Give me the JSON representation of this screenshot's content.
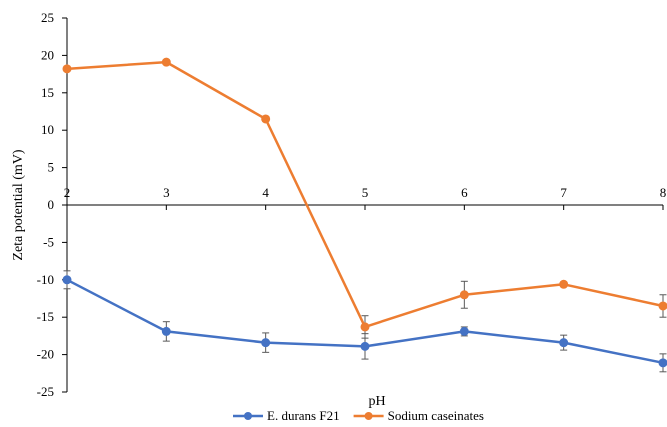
{
  "chart_data": {
    "type": "line",
    "xlabel": "pH",
    "ylabel": "Zeta potential (mV)",
    "x": [
      2,
      3,
      4,
      5,
      6,
      7,
      8
    ],
    "xlim": [
      2,
      8
    ],
    "ylim": [
      -25,
      25
    ],
    "yticks": [
      25,
      20,
      15,
      10,
      5,
      0,
      -5,
      -10,
      -15,
      -20,
      -25
    ],
    "xticks": [
      2,
      3,
      4,
      5,
      6,
      7,
      8
    ],
    "grid": false,
    "legend_position": "bottom",
    "series": [
      {
        "name": "E. durans F21",
        "color": "#4472C4",
        "values": [
          -10.0,
          -16.9,
          -18.4,
          -18.9,
          -16.9,
          -18.4,
          -21.1
        ],
        "errors": [
          1.2,
          1.3,
          1.3,
          1.7,
          0.6,
          1.0,
          1.2
        ]
      },
      {
        "name": "Sodium caseinates",
        "color": "#ED7D31",
        "values": [
          18.2,
          19.1,
          11.5,
          -16.3,
          -12.0,
          -10.6,
          -13.5
        ],
        "errors": [
          0.3,
          0.3,
          0.3,
          1.5,
          1.8,
          0.3,
          1.5
        ]
      }
    ]
  }
}
